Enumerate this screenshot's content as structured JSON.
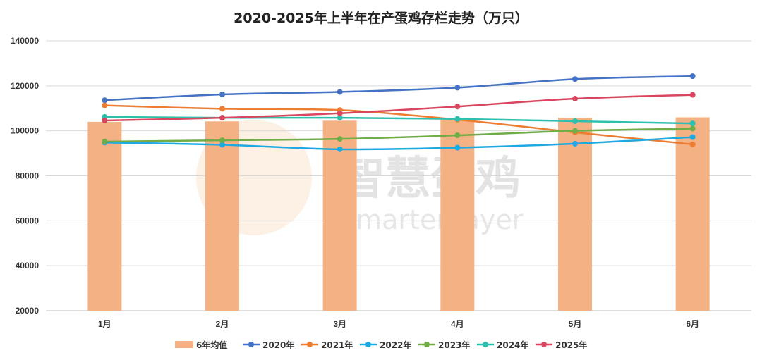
{
  "chart_data": {
    "type": "bar+line",
    "title": "2020-2025年上半年在产蛋鸡存栏走势（万只）",
    "categories": [
      "1月",
      "2月",
      "3月",
      "4月",
      "5月",
      "6月"
    ],
    "ylim": [
      20000,
      140000
    ],
    "yticks": [
      20000,
      40000,
      60000,
      80000,
      100000,
      120000,
      140000
    ],
    "grid": true,
    "legend_position": "bottom",
    "bar_series": {
      "name": "6年均值",
      "color": "#f4b183",
      "values": [
        104000,
        104200,
        104500,
        105200,
        105800,
        106000
      ]
    },
    "series": [
      {
        "name": "2020年",
        "color": "#4472c4",
        "values": [
          113600,
          116200,
          117300,
          119200,
          123000,
          124300
        ]
      },
      {
        "name": "2021年",
        "color": "#ed7d31",
        "values": [
          111300,
          109800,
          109200,
          105000,
          99300,
          94000
        ]
      },
      {
        "name": "2022年",
        "color": "#1fa9e1",
        "values": [
          94800,
          93800,
          91800,
          92500,
          94300,
          97200
        ]
      },
      {
        "name": "2023年",
        "color": "#70ad47",
        "values": [
          95200,
          95800,
          96400,
          98000,
          100000,
          101000
        ]
      },
      {
        "name": "2024年",
        "color": "#2fbfae",
        "values": [
          106200,
          105800,
          105800,
          105300,
          104300,
          103300
        ]
      },
      {
        "name": "2025年",
        "color": "#d9465f",
        "values": [
          104600,
          105800,
          107800,
          110800,
          114300,
          116000
        ]
      }
    ]
  },
  "watermark": {
    "cn": "智慧蛋鸡",
    "en": "Smarter layer"
  }
}
